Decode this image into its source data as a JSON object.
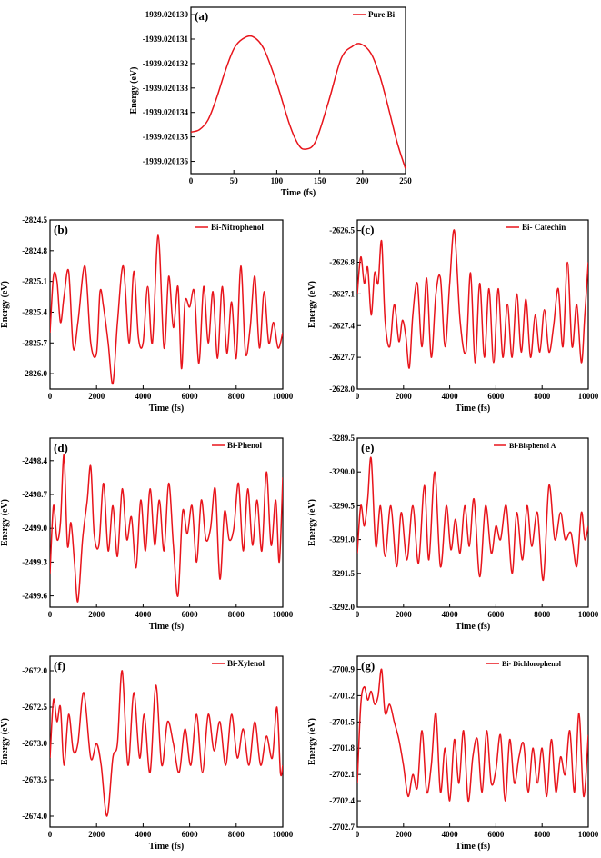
{
  "chart_data": [
    {
      "id": "a",
      "type": "line",
      "panel_label": "(a)",
      "xlabel": "Time (fs)",
      "ylabel": "Energy (eV)",
      "xlim": [
        0,
        250
      ],
      "ylim": [
        -1939.0201365,
        -1939.0201297
      ],
      "xticks": [
        0,
        50,
        100,
        150,
        200,
        250
      ],
      "yticks": [
        -1939.02013,
        -1939.020131,
        -1939.020132,
        -1939.020133,
        -1939.020134,
        -1939.020135,
        -1939.020136
      ],
      "ytick_labels": [
        "-1939.020130",
        "-1939.020131",
        "-1939.020132",
        "-1939.020133",
        "-1939.020134",
        "-1939.020135",
        "-1939.020136"
      ],
      "legend": "Pure Bi",
      "legend_position": "top-right",
      "color": "#e8141b",
      "x": [
        0,
        10,
        20,
        30,
        40,
        50,
        60,
        72,
        85,
        100,
        115,
        125,
        133,
        145,
        160,
        175,
        188,
        198,
        210,
        220,
        230,
        240,
        250
      ],
      "y": [
        -1939.0201348,
        -1939.0201347,
        -1939.0201343,
        -1939.0201334,
        -1939.0201323,
        -1939.0201314,
        -1939.020131,
        -1939.0201309,
        -1939.0201314,
        -1939.0201328,
        -1939.0201345,
        -1939.0201353,
        -1939.0201355,
        -1939.0201352,
        -1939.0201336,
        -1939.0201318,
        -1939.0201313,
        -1939.0201312,
        -1939.0201316,
        -1939.0201325,
        -1939.0201338,
        -1939.0201352,
        -1939.0201363
      ]
    },
    {
      "id": "b",
      "type": "line",
      "panel_label": "(b)",
      "xlabel": "Time (fs)",
      "ylabel": "Energy (eV)",
      "xlim": [
        0,
        10000
      ],
      "ylim": [
        -2826.15,
        -2824.5
      ],
      "xticks": [
        0,
        2000,
        4000,
        6000,
        8000,
        10000
      ],
      "yticks": [
        -2824.5,
        -2824.8,
        -2825.1,
        -2825.4,
        -2825.7,
        -2826.0
      ],
      "ytick_labels": [
        "-2824.5",
        "-2824.8",
        "-2825.1",
        "-2825.4",
        "-2825.7",
        "-2826.0"
      ],
      "legend": "Bi-Nitrophenol",
      "legend_position": "top-right",
      "color": "#e8141b",
      "x": [
        0,
        150,
        300,
        450,
        600,
        800,
        1000,
        1200,
        1500,
        1750,
        2000,
        2150,
        2300,
        2500,
        2700,
        2900,
        3150,
        3400,
        3600,
        3800,
        4000,
        4200,
        4400,
        4650,
        4900,
        5100,
        5300,
        5500,
        5650,
        5800,
        6000,
        6200,
        6400,
        6600,
        6800,
        7000,
        7200,
        7400,
        7600,
        7800,
        8000,
        8200,
        8400,
        8600,
        8800,
        9000,
        9200,
        9400,
        9600,
        9800,
        10000
      ],
      "y": [
        -2825.6,
        -2825.05,
        -2825.1,
        -2825.5,
        -2825.25,
        -2825.0,
        -2825.75,
        -2825.5,
        -2824.95,
        -2825.7,
        -2825.8,
        -2825.2,
        -2825.35,
        -2825.7,
        -2826.1,
        -2825.5,
        -2824.95,
        -2825.7,
        -2825.0,
        -2825.65,
        -2825.7,
        -2825.15,
        -2825.7,
        -2824.65,
        -2825.75,
        -2825.05,
        -2825.55,
        -2825.15,
        -2825.95,
        -2825.3,
        -2825.35,
        -2825.2,
        -2825.9,
        -2825.15,
        -2825.7,
        -2825.2,
        -2825.85,
        -2825.15,
        -2825.8,
        -2825.3,
        -2825.85,
        -2824.95,
        -2825.8,
        -2825.55,
        -2825.05,
        -2825.75,
        -2825.2,
        -2825.7,
        -2825.5,
        -2825.75,
        -2825.6
      ]
    },
    {
      "id": "c",
      "type": "line",
      "panel_label": "(c)",
      "xlabel": "Time (fs)",
      "ylabel": "Energy (eV)",
      "xlim": [
        0,
        10000
      ],
      "ylim": [
        -2628.0,
        -2626.4
      ],
      "xticks": [
        0,
        2000,
        4000,
        6000,
        8000,
        10000
      ],
      "yticks": [
        -2626.5,
        -2626.8,
        -2627.1,
        -2627.4,
        -2627.7,
        -2628.0
      ],
      "ytick_labels": [
        "-2626.5",
        "-2626.8",
        "-2627.1",
        "-2627.4",
        "-2627.7",
        "-2628.0"
      ],
      "legend": "Bi- Catechin",
      "legend_position": "top-right",
      "color": "#e8141b",
      "x": [
        0,
        150,
        300,
        450,
        600,
        750,
        900,
        1050,
        1200,
        1400,
        1600,
        1800,
        1950,
        2100,
        2250,
        2400,
        2600,
        2800,
        3000,
        3200,
        3400,
        3600,
        3800,
        4000,
        4200,
        4450,
        4700,
        4900,
        5100,
        5300,
        5500,
        5700,
        5900,
        6100,
        6300,
        6500,
        6700,
        6900,
        7100,
        7300,
        7500,
        7700,
        7900,
        8100,
        8300,
        8500,
        8700,
        8900,
        9100,
        9300,
        9500,
        9700,
        9850,
        10000
      ],
      "y": [
        -2627.1,
        -2626.75,
        -2627.0,
        -2626.85,
        -2627.3,
        -2626.9,
        -2627.0,
        -2626.6,
        -2627.35,
        -2627.6,
        -2627.2,
        -2627.55,
        -2627.35,
        -2627.5,
        -2627.8,
        -2627.3,
        -2627.0,
        -2627.6,
        -2626.95,
        -2627.7,
        -2627.1,
        -2626.95,
        -2627.6,
        -2627.0,
        -2626.5,
        -2627.35,
        -2627.65,
        -2626.9,
        -2627.75,
        -2627.0,
        -2627.7,
        -2627.05,
        -2627.75,
        -2627.05,
        -2627.7,
        -2627.2,
        -2627.7,
        -2627.1,
        -2627.65,
        -2627.15,
        -2627.7,
        -2627.3,
        -2627.65,
        -2627.25,
        -2627.65,
        -2627.4,
        -2627.05,
        -2627.6,
        -2626.8,
        -2627.6,
        -2627.2,
        -2627.75,
        -2627.3,
        -2626.8
      ]
    },
    {
      "id": "d",
      "type": "line",
      "panel_label": "(d)",
      "xlabel": "Time (fs)",
      "ylabel": "Energy (eV)",
      "xlim": [
        0,
        10000
      ],
      "ylim": [
        -2499.7,
        -2498.2
      ],
      "xticks": [
        0,
        2000,
        4000,
        6000,
        8000,
        10000
      ],
      "yticks": [
        -2498.4,
        -2498.7,
        -2499.0,
        -2499.3,
        -2499.6
      ],
      "ytick_labels": [
        "-2498.4",
        "-2498.7",
        "-2499.0",
        "-2499.3",
        "-2499.6"
      ],
      "legend": "Bi-Phenol",
      "legend_position": "top-right",
      "color": "#e8141b",
      "x": [
        0,
        150,
        300,
        450,
        600,
        750,
        900,
        1050,
        1200,
        1400,
        1600,
        1750,
        1900,
        2100,
        2300,
        2500,
        2700,
        2900,
        3100,
        3300,
        3500,
        3700,
        3900,
        4100,
        4300,
        4500,
        4700,
        4900,
        5100,
        5300,
        5500,
        5700,
        5900,
        6100,
        6300,
        6500,
        6700,
        6900,
        7100,
        7300,
        7500,
        7700,
        7900,
        8100,
        8300,
        8500,
        8700,
        8900,
        9100,
        9300,
        9500,
        9700,
        9850,
        10000
      ],
      "y": [
        -2499.4,
        -2498.8,
        -2499.1,
        -2498.95,
        -2498.35,
        -2499.15,
        -2498.95,
        -2499.3,
        -2499.65,
        -2499.1,
        -2498.75,
        -2498.45,
        -2499.05,
        -2499.15,
        -2498.6,
        -2499.2,
        -2498.8,
        -2499.25,
        -2498.65,
        -2499.1,
        -2498.9,
        -2499.35,
        -2498.75,
        -2499.2,
        -2498.65,
        -2499.15,
        -2498.75,
        -2499.2,
        -2498.6,
        -2499.15,
        -2499.6,
        -2498.85,
        -2499.05,
        -2498.8,
        -2499.3,
        -2498.75,
        -2499.1,
        -2499.0,
        -2498.65,
        -2499.45,
        -2498.85,
        -2499.1,
        -2499.0,
        -2498.6,
        -2499.2,
        -2498.65,
        -2499.15,
        -2498.75,
        -2499.2,
        -2498.5,
        -2499.15,
        -2498.75,
        -2499.3,
        -2498.55
      ]
    },
    {
      "id": "e",
      "type": "line",
      "panel_label": "(e)",
      "xlabel": "Time (fs)",
      "ylabel": "Energy (eV)",
      "xlim": [
        0,
        10000
      ],
      "ylim": [
        -3292.0,
        -3289.5
      ],
      "xticks": [
        0,
        2000,
        4000,
        6000,
        8000,
        10000
      ],
      "yticks": [
        -3289.5,
        -3290.0,
        -3290.5,
        -3291.0,
        -3291.5,
        -3292.0
      ],
      "ytick_labels": [
        "-3289.5",
        "-3290.0",
        "-3290.5",
        "-3291.0",
        "-3291.5",
        "-3292.0"
      ],
      "legend": "Bi-Bisphenol A",
      "legend_position": "top-right",
      "color": "#e8141b",
      "x": [
        0,
        150,
        300,
        450,
        600,
        800,
        1000,
        1200,
        1450,
        1700,
        1900,
        2150,
        2400,
        2650,
        2900,
        3100,
        3350,
        3600,
        3850,
        4050,
        4250,
        4450,
        4650,
        4850,
        5050,
        5300,
        5550,
        5800,
        6000,
        6200,
        6450,
        6700,
        6900,
        7150,
        7350,
        7550,
        7800,
        8050,
        8300,
        8550,
        8800,
        9000,
        9250,
        9500,
        9700,
        9850,
        10000
      ],
      "y": [
        -3291.2,
        -3290.5,
        -3290.8,
        -3290.4,
        -3289.8,
        -3291.1,
        -3290.5,
        -3291.25,
        -3290.5,
        -3291.4,
        -3290.6,
        -3291.3,
        -3290.5,
        -3291.35,
        -3290.2,
        -3291.3,
        -3290.0,
        -3291.4,
        -3290.5,
        -3291.15,
        -3290.7,
        -3291.2,
        -3290.5,
        -3291.1,
        -3290.4,
        -3291.55,
        -3290.5,
        -3291.2,
        -3290.8,
        -3291.0,
        -3290.5,
        -3291.5,
        -3290.6,
        -3291.3,
        -3290.5,
        -3291.1,
        -3290.6,
        -3291.6,
        -3290.2,
        -3291.0,
        -3290.6,
        -3291.0,
        -3290.9,
        -3291.4,
        -3290.6,
        -3291.0,
        -3290.8
      ]
    },
    {
      "id": "f",
      "type": "line",
      "panel_label": "(f)",
      "xlabel": "Time (fs)",
      "ylabel": "Energy (eV)",
      "xlim": [
        0,
        10000
      ],
      "ylim": [
        -2674.15,
        -2671.8
      ],
      "xticks": [
        0,
        2000,
        4000,
        6000,
        8000,
        10000
      ],
      "yticks": [
        -2672.0,
        -2672.5,
        -2673.0,
        -2673.5,
        -2674.0
      ],
      "ytick_labels": [
        "-2672.0",
        "-2672.5",
        "-2673.0",
        "-2673.5",
        "-2674.0"
      ],
      "legend": "Bi-Xylenol",
      "legend_position": "top-right",
      "color": "#e8141b",
      "x": [
        0,
        150,
        300,
        450,
        600,
        800,
        1000,
        1200,
        1450,
        1750,
        2000,
        2200,
        2450,
        2700,
        2900,
        3100,
        3350,
        3600,
        3850,
        4050,
        4300,
        4550,
        4800,
        5050,
        5300,
        5550,
        5800,
        6050,
        6300,
        6550,
        6800,
        7050,
        7300,
        7550,
        7800,
        8050,
        8300,
        8550,
        8800,
        9050,
        9300,
        9550,
        9750,
        9900,
        10000
      ],
      "y": [
        -2673.2,
        -2672.4,
        -2672.7,
        -2672.5,
        -2673.3,
        -2672.6,
        -2673.1,
        -2673.0,
        -2672.3,
        -2673.2,
        -2673.0,
        -2673.3,
        -2674.0,
        -2673.2,
        -2673.0,
        -2672.0,
        -2673.3,
        -2672.3,
        -2673.2,
        -2672.6,
        -2673.4,
        -2672.2,
        -2673.3,
        -2672.7,
        -2673.0,
        -2673.4,
        -2672.8,
        -2673.3,
        -2672.6,
        -2673.4,
        -2672.6,
        -2673.1,
        -2672.7,
        -2673.3,
        -2672.6,
        -2673.2,
        -2672.8,
        -2673.3,
        -2672.7,
        -2673.3,
        -2672.9,
        -2673.2,
        -2672.5,
        -2673.4,
        -2673.3
      ]
    },
    {
      "id": "g",
      "type": "line",
      "panel_label": "(g)",
      "xlabel": "Time (fs)",
      "ylabel": "Energy (eV)",
      "xlim": [
        0,
        10000
      ],
      "ylim": [
        -2702.7,
        -2700.75
      ],
      "xticks": [
        0,
        2000,
        4000,
        6000,
        8000,
        10000
      ],
      "yticks": [
        -2700.9,
        -2701.2,
        -2701.5,
        -2701.8,
        -2702.1,
        -2702.4,
        -2702.7
      ],
      "ytick_labels": [
        "-2700.9",
        "-2701.2",
        "-2701.5",
        "-2701.8",
        "-2702.1",
        "-2702.4",
        "-2702.7"
      ],
      "legend": "Bi- Dichlorophenol",
      "legend_position": "top-right",
      "color": "#e8141b",
      "x": [
        0,
        150,
        300,
        450,
        600,
        750,
        900,
        1050,
        1200,
        1400,
        1600,
        1800,
        2000,
        2200,
        2400,
        2600,
        2800,
        3000,
        3200,
        3400,
        3600,
        3800,
        4000,
        4200,
        4400,
        4600,
        4800,
        5000,
        5200,
        5400,
        5600,
        5800,
        6000,
        6200,
        6400,
        6600,
        6800,
        7000,
        7200,
        7400,
        7600,
        7800,
        8000,
        8200,
        8400,
        8600,
        8800,
        9000,
        9200,
        9400,
        9600,
        9800,
        10000
      ],
      "y": [
        -2702.2,
        -2701.3,
        -2701.1,
        -2701.25,
        -2701.15,
        -2701.3,
        -2701.2,
        -2700.9,
        -2701.4,
        -2701.3,
        -2701.5,
        -2701.7,
        -2702.0,
        -2702.35,
        -2702.1,
        -2702.25,
        -2701.6,
        -2702.3,
        -2702.0,
        -2701.4,
        -2702.3,
        -2701.8,
        -2702.4,
        -2701.7,
        -2702.2,
        -2701.6,
        -2702.4,
        -2701.9,
        -2701.7,
        -2702.3,
        -2701.6,
        -2702.2,
        -2702.05,
        -2701.65,
        -2702.4,
        -2701.7,
        -2702.2,
        -2701.9,
        -2701.75,
        -2702.3,
        -2701.8,
        -2702.2,
        -2701.8,
        -2702.35,
        -2701.7,
        -2702.3,
        -2701.9,
        -2702.1,
        -2701.6,
        -2702.3,
        -2701.4,
        -2702.35,
        -2701.65
      ]
    }
  ]
}
